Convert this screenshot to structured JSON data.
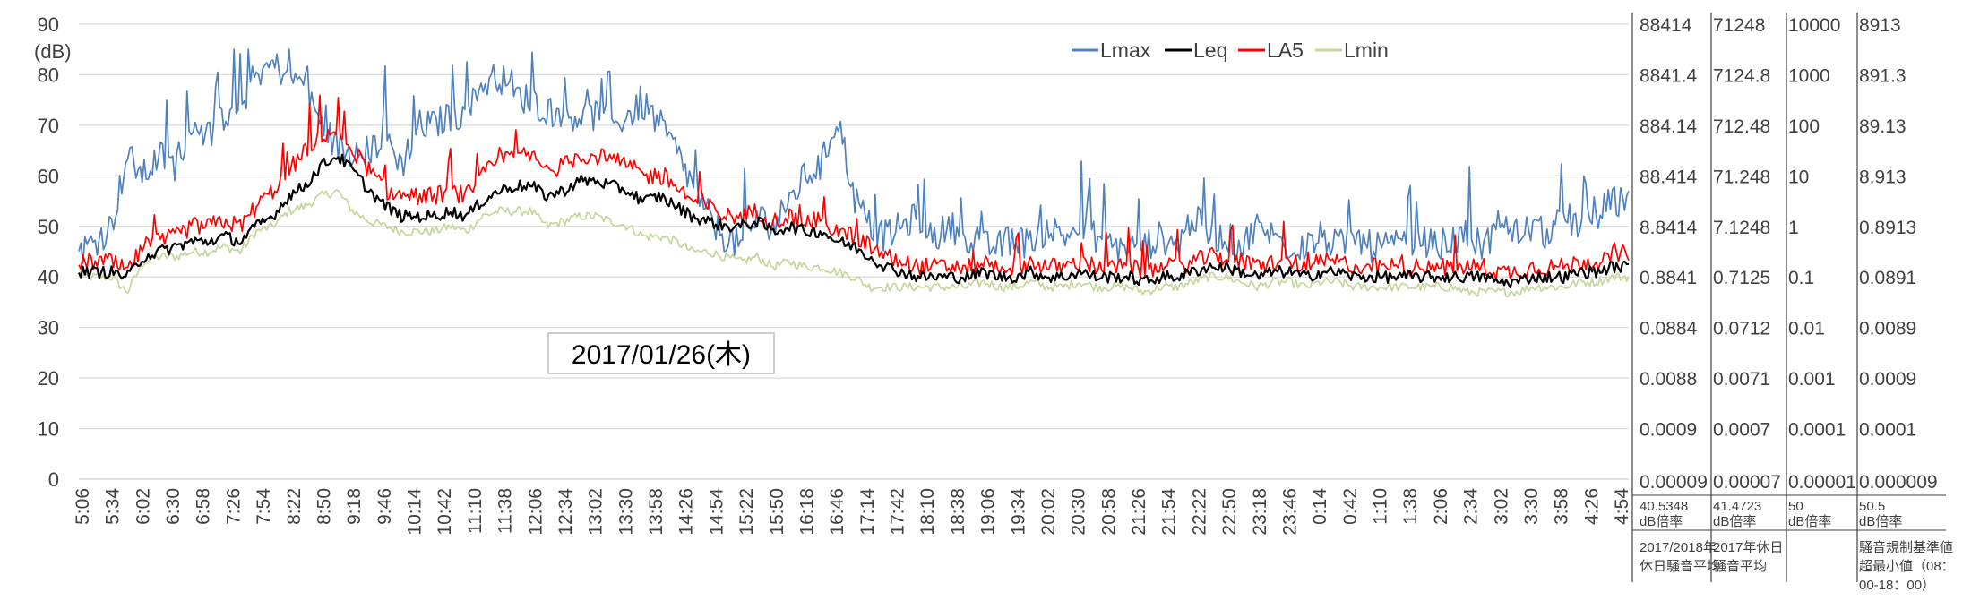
{
  "colors": {
    "Lmax": "#4f81bd",
    "Leq": "#000000",
    "LA5": "#ff0000",
    "Lmin": "#c4d79b"
  },
  "chart_data": {
    "type": "line",
    "ylabel": "(dB)",
    "ylim": [
      0,
      90
    ],
    "yticks": [
      0,
      10,
      20,
      30,
      40,
      50,
      60,
      70,
      80,
      90
    ],
    "grid": true,
    "legend_position": "top-center",
    "date_label": "2017/01/26(木)",
    "xtick_labels": [
      "5:06",
      "5:34",
      "6:02",
      "6:30",
      "6:58",
      "7:26",
      "7:54",
      "8:22",
      "8:50",
      "9:18",
      "9:46",
      "10:14",
      "10:42",
      "11:10",
      "11:38",
      "12:06",
      "12:34",
      "13:02",
      "13:30",
      "13:58",
      "14:26",
      "14:54",
      "15:22",
      "15:50",
      "16:18",
      "16:46",
      "17:14",
      "17:42",
      "18:10",
      "18:38",
      "19:06",
      "19:34",
      "20:02",
      "20:30",
      "20:58",
      "21:26",
      "21:54",
      "22:22",
      "22:50",
      "23:18",
      "23:46",
      "0:14",
      "0:42",
      "1:10",
      "1:38",
      "2:06",
      "2:34",
      "3:02",
      "3:30",
      "3:58",
      "4:26",
      "4:54"
    ],
    "series": [
      {
        "name": "Lmax",
        "values": [
          45,
          47,
          50,
          64,
          60,
          64,
          62,
          71,
          68,
          72,
          74,
          80,
          82,
          80,
          78,
          70,
          66,
          64,
          65,
          68,
          62,
          70,
          70,
          72,
          72,
          78,
          80,
          76,
          75,
          73,
          72,
          72,
          72,
          70,
          72,
          74,
          70,
          65,
          58,
          52,
          48,
          46,
          52,
          50,
          55,
          60,
          62,
          72,
          56,
          50,
          48,
          50,
          52,
          48,
          50,
          48,
          46,
          46,
          48,
          46,
          50,
          48,
          50,
          48,
          46,
          46,
          46,
          48,
          46,
          52,
          48,
          48,
          46,
          50,
          48,
          46,
          46,
          48,
          46,
          48,
          46,
          46,
          46,
          48,
          46,
          47,
          48,
          46,
          50,
          48,
          50,
          48,
          52,
          50,
          52,
          55,
          54
        ]
      },
      {
        "name": "Leq",
        "values": [
          41,
          41,
          41,
          40,
          44,
          45,
          46,
          47,
          47,
          48,
          47,
          50,
          52,
          56,
          58,
          62,
          64,
          61,
          57,
          54,
          52,
          52,
          52,
          53,
          52,
          55,
          57,
          58,
          58,
          56,
          57,
          59,
          59,
          58,
          57,
          55,
          56,
          54,
          52,
          51,
          50,
          50,
          51,
          49,
          50,
          49,
          49,
          47,
          46,
          44,
          42,
          41,
          40,
          40,
          40,
          40,
          41,
          40,
          40,
          41,
          40,
          40,
          41,
          40,
          40,
          40,
          39,
          40,
          40,
          41,
          42,
          42,
          41,
          40,
          41,
          41,
          40,
          41,
          41,
          40,
          40,
          40,
          40,
          40,
          40,
          40,
          40,
          40,
          39,
          39,
          40,
          40,
          40,
          41,
          41,
          42,
          42
        ]
      },
      {
        "name": "LA5",
        "values": [
          43,
          43,
          43,
          41,
          46,
          47,
          48,
          50,
          50,
          51,
          50,
          54,
          57,
          61,
          65,
          68,
          69,
          65,
          61,
          57,
          56,
          56,
          56,
          57,
          56,
          60,
          63,
          64,
          64,
          61,
          62,
          64,
          64,
          63,
          62,
          60,
          60,
          58,
          55,
          54,
          52,
          52,
          53,
          51,
          52,
          51,
          51,
          49,
          48,
          46,
          44,
          43,
          42,
          42,
          42,
          42,
          43,
          42,
          42,
          43,
          42,
          42,
          43,
          42,
          42,
          42,
          41,
          42,
          42,
          43,
          44,
          44,
          43,
          42,
          43,
          43,
          42,
          43,
          43,
          42,
          42,
          42,
          42,
          42,
          42,
          42,
          42,
          42,
          41,
          41,
          42,
          42,
          42,
          43,
          43,
          44,
          45
        ]
      },
      {
        "name": "Lmin",
        "values": [
          40,
          40,
          40,
          37,
          43,
          44,
          44,
          45,
          45,
          46,
          45,
          49,
          50,
          53,
          54,
          56,
          57,
          53,
          51,
          50,
          49,
          49,
          49,
          50,
          49,
          52,
          53,
          53,
          53,
          50,
          51,
          52,
          52,
          51,
          50,
          48,
          48,
          47,
          45,
          45,
          44,
          43,
          44,
          42,
          43,
          42,
          42,
          41,
          40,
          38,
          38,
          38,
          38,
          38,
          38,
          38,
          39,
          38,
          38,
          39,
          38,
          38,
          39,
          38,
          38,
          38,
          37,
          38,
          38,
          39,
          40,
          40,
          39,
          38,
          39,
          39,
          38,
          39,
          39,
          38,
          38,
          38,
          38,
          38,
          38,
          38,
          37,
          37,
          37,
          37,
          38,
          38,
          38,
          39,
          39,
          40,
          40
        ]
      }
    ],
    "secondary_scales": [
      {
        "values": [
          "88414",
          "8841.4",
          "884.14",
          "88.414",
          "8.8414",
          "0.8841",
          "0.0884",
          "0.0088",
          "0.0009",
          "0.00009"
        ],
        "foot_value": "40.5348",
        "foot_unit": "dB倍率",
        "foot_note_1": "2017/2018年",
        "foot_note_2": "休日騒音平均"
      },
      {
        "values": [
          "71248",
          "7124.8",
          "712.48",
          "71.248",
          "7.1248",
          "0.7125",
          "0.0712",
          "0.0071",
          "0.0007",
          "0.00007"
        ],
        "foot_value": "41.4723",
        "foot_unit": "dB倍率",
        "foot_note_1": "2017年休日",
        "foot_note_2": "騒音平均"
      },
      {
        "values": [
          "10000",
          "1000",
          "100",
          "10",
          "1",
          "0.1",
          "0.01",
          "0.001",
          "0.0001",
          "0.00001"
        ],
        "foot_value": "50",
        "foot_unit": "dB倍率",
        "foot_note_1": "",
        "foot_note_2": ""
      },
      {
        "values": [
          "8913",
          "891.3",
          "89.13",
          "8.913",
          "0.8913",
          "0.0891",
          "0.0089",
          "0.0009",
          "0.0001",
          "0.000009"
        ],
        "foot_value": "50.5",
        "foot_unit": "dB倍率",
        "foot_note_1": "騒音規制基準値",
        "foot_note_2": "超最小値（08：",
        "foot_note_3": "00-18：00）"
      }
    ]
  }
}
